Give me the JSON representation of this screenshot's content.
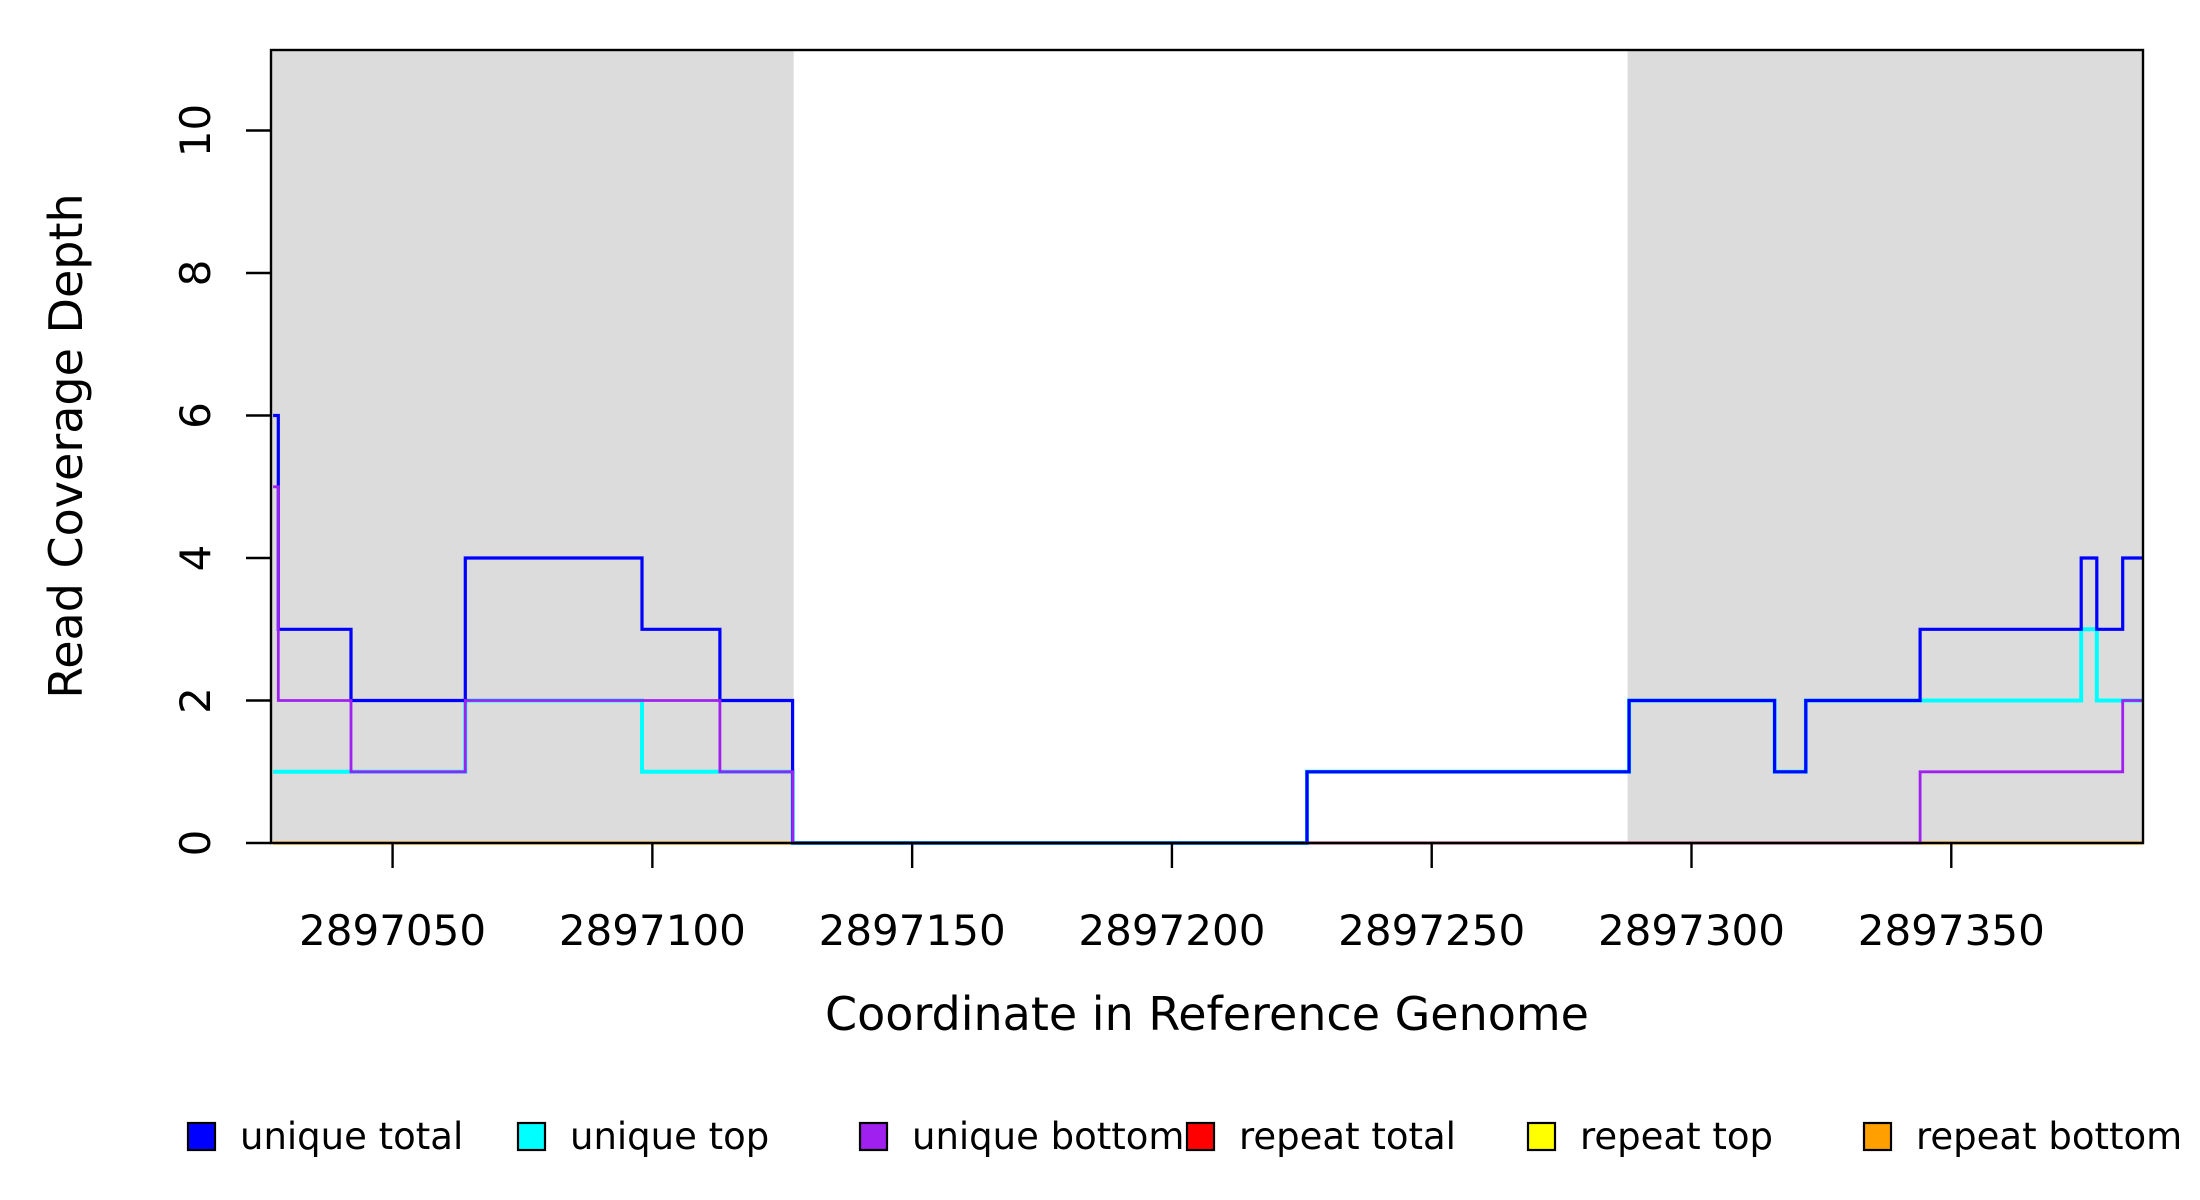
{
  "chart_data": {
    "type": "line",
    "subtype": "step-coverage",
    "title": "",
    "xlabel": "Coordinate in Reference Genome",
    "ylabel": "Read Coverage Depth",
    "grid": false,
    "background": "#ffffff",
    "shade_color": "#dcdcdc",
    "x_range": [
      2897026.6,
      2897386.9
    ],
    "y_range": [
      0,
      11.13
    ],
    "x_ticks": [
      2897050,
      2897100,
      2897150,
      2897200,
      2897250,
      2897300,
      2897350
    ],
    "y_ticks": [
      0,
      2,
      4,
      6,
      8,
      10
    ],
    "shaded_regions": [
      {
        "name": "left-gray-band",
        "from": 2897026.6,
        "to": 2897127.2
      },
      {
        "name": "right-gray-band",
        "from": 2897287.7,
        "to": 2897386.9
      }
    ],
    "x_start": 2897027,
    "x_end": 2897387,
    "series": [
      {
        "id": "repeat-total",
        "name": "repeat total",
        "color": "#FF0000",
        "width": 2.4,
        "points": [
          [
            2897027,
            0
          ]
        ]
      },
      {
        "id": "repeat-top",
        "name": "repeat top",
        "color": "#FFFF00",
        "width": 2.4,
        "points": [
          [
            2897027,
            0
          ]
        ]
      },
      {
        "id": "repeat-bottom",
        "name": "repeat bottom",
        "color": "#FFA000",
        "width": 3.2,
        "points": [
          [
            2897027,
            0
          ]
        ]
      },
      {
        "id": "unique-top",
        "name": "unique top",
        "color": "#00FFFF",
        "width": 4,
        "points": [
          [
            2897027,
            1
          ],
          [
            2897064,
            2
          ],
          [
            2897098,
            1
          ],
          [
            2897127,
            0
          ],
          [
            2897226,
            1
          ],
          [
            2897288,
            2
          ],
          [
            2897316,
            1
          ],
          [
            2897322,
            2
          ],
          [
            2897375,
            3
          ],
          [
            2897378,
            2
          ]
        ]
      },
      {
        "id": "unique-total",
        "name": "unique total",
        "color": "#0000FF",
        "width": 3.2,
        "points": [
          [
            2897027,
            6
          ],
          [
            2897028,
            3
          ],
          [
            2897042,
            2
          ],
          [
            2897064,
            4
          ],
          [
            2897098,
            3
          ],
          [
            2897113,
            2
          ],
          [
            2897127,
            0
          ],
          [
            2897226,
            1
          ],
          [
            2897288,
            2
          ],
          [
            2897316,
            1
          ],
          [
            2897322,
            2
          ],
          [
            2897344,
            3
          ],
          [
            2897375,
            4
          ],
          [
            2897378,
            3
          ],
          [
            2897383,
            4
          ]
        ]
      },
      {
        "id": "unique-bottom",
        "name": "unique bottom",
        "color": "#A020F0",
        "width": 2.8,
        "points": [
          [
            2897027,
            5
          ],
          [
            2897028,
            2
          ],
          [
            2897042,
            1
          ],
          [
            2897064,
            2
          ],
          [
            2897113,
            1
          ],
          [
            2897127,
            0
          ],
          [
            2897344,
            1
          ],
          [
            2897383,
            2
          ]
        ]
      }
    ],
    "legend": {
      "position": "bottom",
      "items": [
        {
          "label": "unique total",
          "color": "#0000FF"
        },
        {
          "label": "unique top",
          "color": "#00FFFF"
        },
        {
          "label": "unique bottom",
          "color": "#A020F0"
        },
        {
          "label": "repeat total",
          "color": "#FF0000"
        },
        {
          "label": "repeat top",
          "color": "#FFFF00"
        },
        {
          "label": "repeat bottom",
          "color": "#FFA000"
        }
      ]
    }
  }
}
